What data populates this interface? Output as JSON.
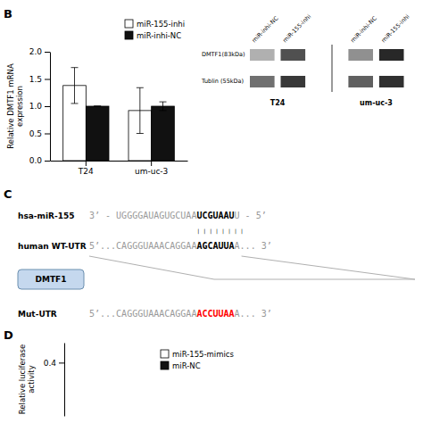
{
  "chart_data": [
    {
      "type": "bar",
      "title": "B",
      "ylabel": "Relative DMTF1 mRNA\nexpression",
      "categories": [
        "T24",
        "um-uc-3"
      ],
      "series": [
        {
          "name": "miR-155-inhi",
          "color": "#ffffff",
          "values": [
            1.38,
            0.92
          ],
          "errors": [
            0.33,
            0.42
          ]
        },
        {
          "name": "miR-inhi-NC",
          "color": "#111111",
          "values": [
            1.0,
            1.0
          ],
          "errors": [
            0.0,
            0.08
          ]
        }
      ],
      "ylim": [
        0,
        2
      ],
      "yticks": [
        {
          "value": 0,
          "label": "0.0"
        },
        0.5,
        {
          "value": 1,
          "label": "1.0"
        },
        1.5,
        {
          "value": 2,
          "label": "2.0"
        }
      ],
      "legend": "upper right",
      "annotations": [
        "miR-inhi-NC",
        "miR-155-inhi",
        "miR-inhi-NC",
        "miR-155-inhi",
        "DMTF1(83kDa)",
        "Tublin (55kDa)",
        "T24",
        "um-uc-3"
      ]
    },
    {
      "type": "diagram",
      "title": "C",
      "annotations": [
        "hsa-miR-155",
        "3’ - UGGGGAUAGUGCUAA",
        "UCGUAAU",
        "U - 5’",
        "| | | | | | | |",
        "human WT-UTR",
        "5’...CAGGGUAAACAGGAA",
        "AGCAUUA",
        "A... 3’",
        "DMTF1",
        "Mut-UTR",
        "5’...CAGGGUAAACAGGAA",
        "ACCUUAA",
        "A... 3’"
      ]
    },
    {
      "type": "bar",
      "title": "D",
      "ylabel": "Relative luciferase\nactivity",
      "categories": [],
      "series": [
        {
          "name": "miR-155-mimics",
          "color": "#ffffff",
          "values": []
        },
        {
          "name": "miR-NC",
          "color": "#111111",
          "values": []
        }
      ],
      "ylim": [
        0,
        0.55
      ],
      "yticks": [
        0.4
      ],
      "legend": "upper left",
      "tick_labels": "y"
    }
  ]
}
